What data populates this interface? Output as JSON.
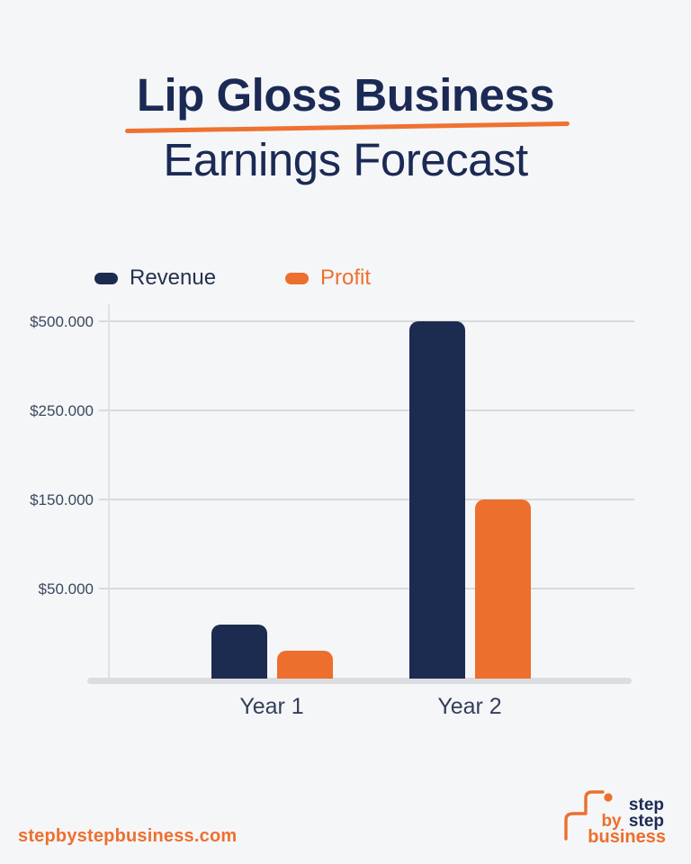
{
  "title": {
    "line1": "Lip Gloss Business",
    "line2": "Earnings Forecast"
  },
  "chart_data": {
    "type": "bar",
    "title": "Lip Gloss Business Earnings Forecast",
    "categories": [
      "Year 1",
      "Year 2"
    ],
    "series": [
      {
        "name": "Revenue",
        "color": "#1c2b50",
        "values": [
          30000,
          500000
        ]
      },
      {
        "name": "Profit",
        "color": "#ec6f2d",
        "values": [
          15000,
          150000
        ]
      }
    ],
    "y_axis": {
      "min": 0,
      "ticks": [
        {
          "label": "$50.000",
          "value": 50000
        },
        {
          "label": "$150.000",
          "value": 150000
        },
        {
          "label": "$250.000",
          "value": 250000
        },
        {
          "label": "$500.000",
          "value": 500000
        }
      ],
      "scale": "ticks evenly spaced (non-linear)"
    },
    "grid": true,
    "legend_position": "top-left"
  },
  "colors": {
    "navy": "#1c2b50",
    "orange": "#ec6f2d",
    "underline_orange": "#ee7231",
    "background": "#f5f6f7",
    "gridline": "#d9dadc"
  },
  "footer": {
    "website_label": "stepbystepbusiness.com",
    "logo": {
      "line1_step": "step",
      "line2_by": "by",
      "line2_step": "step",
      "line3_business": "business"
    }
  }
}
